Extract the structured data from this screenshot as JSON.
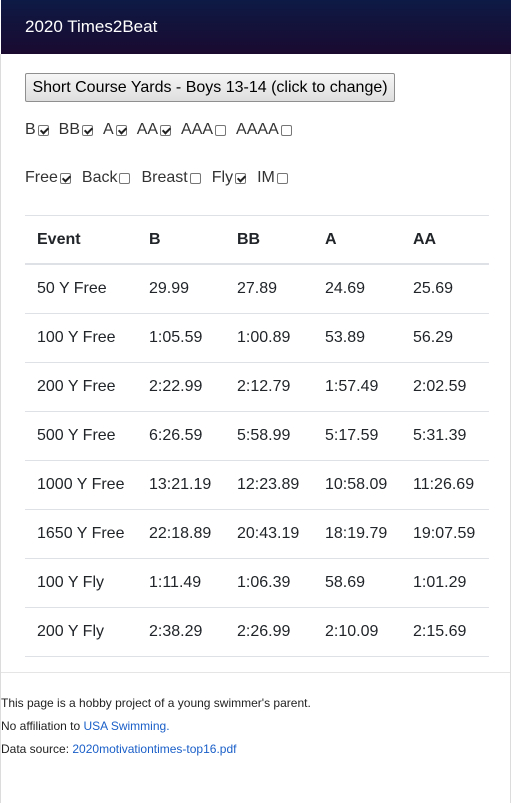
{
  "header": {
    "title": "2020 Times2Beat"
  },
  "course_button": "Short Course Yards - Boys 13-14 (click to change)",
  "levels": [
    {
      "label": "B",
      "checked": true
    },
    {
      "label": "BB",
      "checked": true
    },
    {
      "label": "A",
      "checked": true
    },
    {
      "label": "AA",
      "checked": true
    },
    {
      "label": "AAA",
      "checked": false
    },
    {
      "label": "AAAA",
      "checked": false
    }
  ],
  "strokes": [
    {
      "label": "Free",
      "checked": true
    },
    {
      "label": "Back",
      "checked": false
    },
    {
      "label": "Breast",
      "checked": false
    },
    {
      "label": "Fly",
      "checked": true
    },
    {
      "label": "IM",
      "checked": false
    }
  ],
  "table": {
    "headers": [
      "Event",
      "B",
      "BB",
      "A",
      "AA"
    ],
    "rows": [
      [
        "50 Y Free",
        "29.99",
        "27.89",
        "24.69",
        "25.69"
      ],
      [
        "100 Y Free",
        "1:05.59",
        "1:00.89",
        "53.89",
        "56.29"
      ],
      [
        "200 Y Free",
        "2:22.99",
        "2:12.79",
        "1:57.49",
        "2:02.59"
      ],
      [
        "500 Y Free",
        "6:26.59",
        "5:58.99",
        "5:17.59",
        "5:31.39"
      ],
      [
        "1000 Y Free",
        "13:21.19",
        "12:23.89",
        "10:58.09",
        "11:26.69"
      ],
      [
        "1650 Y Free",
        "22:18.89",
        "20:43.19",
        "18:19.79",
        "19:07.59"
      ],
      [
        "100 Y Fly",
        "1:11.49",
        "1:06.39",
        "58.69",
        "1:01.29"
      ],
      [
        "200 Y Fly",
        "2:38.29",
        "2:26.99",
        "2:10.09",
        "2:15.69"
      ]
    ]
  },
  "footer": {
    "line1": "This page is a hobby project of a young swimmer's parent.",
    "line2_prefix": "No affiliation to ",
    "line2_link": "USA Swimming.",
    "line3_prefix": "Data source: ",
    "line3_link": "2020motivationtimes-top16.pdf"
  },
  "colors": {
    "header_bg": "#120f3a",
    "link": "#1a5fc8"
  }
}
